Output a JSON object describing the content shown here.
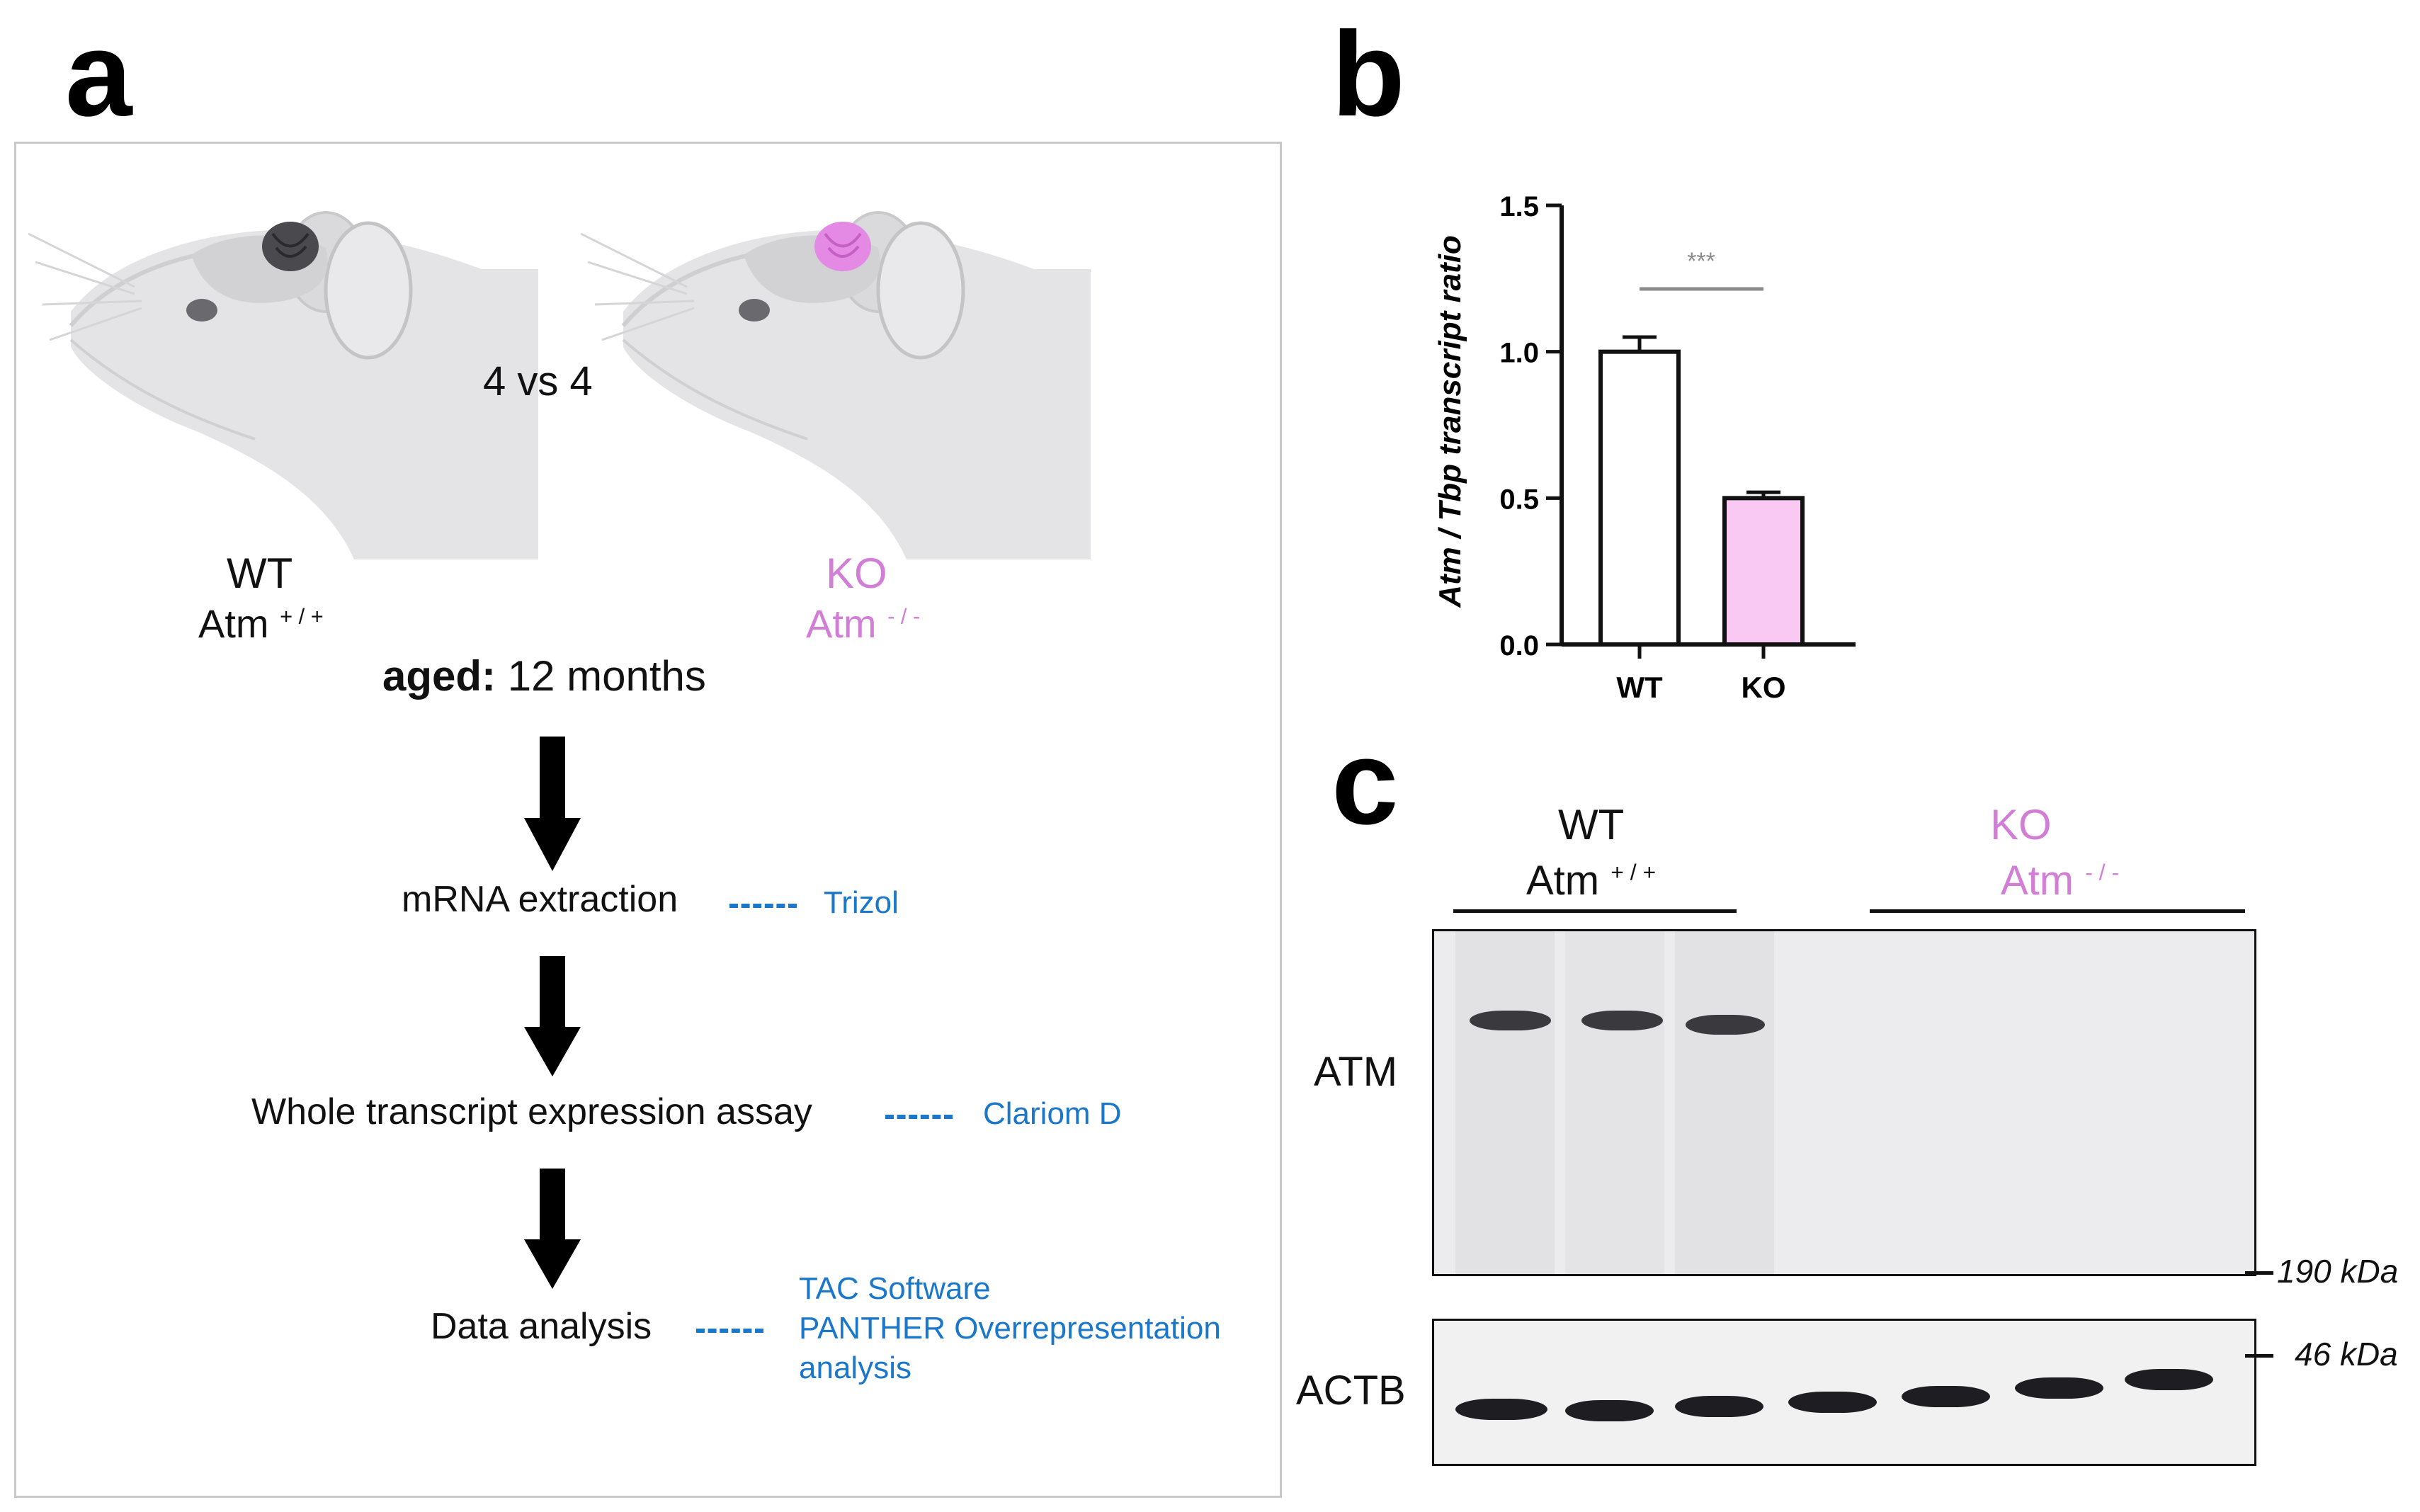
{
  "panel_a": {
    "letter": "a",
    "comparison": "4 vs 4",
    "wt_label": "WT",
    "wt_genotype": "Atm",
    "wt_superscript": "+ / +",
    "ko_label": "KO",
    "ko_genotype": "Atm",
    "ko_superscript": "- / -",
    "aged_bold": "aged:",
    "aged_value": "12 months",
    "steps": [
      {
        "label": "mRNA extraction",
        "method": "Trizol"
      },
      {
        "label": "Whole transcript expression assay",
        "method": "Clariom D"
      },
      {
        "label": "Data analysis",
        "method_lines": [
          "TAC Software",
          "PANTHER Overrepresentation",
          "analysis"
        ]
      }
    ]
  },
  "panel_b": {
    "letter": "b"
  },
  "panel_c": {
    "letter": "c",
    "wt_label": "WT",
    "wt_genotype": "Atm",
    "wt_superscript": "+ / +",
    "ko_label": "KO",
    "ko_genotype": "Atm",
    "ko_superscript": "- / -",
    "blot_top_label": "ATM",
    "blot_bottom_label": "ACTB",
    "marker_top": "190 kDa",
    "marker_bottom": "46 kDa"
  },
  "chart_data": {
    "type": "bar",
    "categories": [
      "WT",
      "KO"
    ],
    "values": [
      1.0,
      0.5
    ],
    "errors": [
      0.05,
      0.02
    ],
    "bar_colors": [
      "#ffffff",
      "#f9c8f3"
    ],
    "ylabel": "Atm / Tbp transcript ratio",
    "ylim": [
      0,
      1.5
    ],
    "yticks": [
      0.0,
      0.5,
      1.0,
      1.5
    ],
    "ytick_labels": [
      "0.0",
      "0.5",
      "1.0",
      "1.5"
    ],
    "significance": "***"
  }
}
